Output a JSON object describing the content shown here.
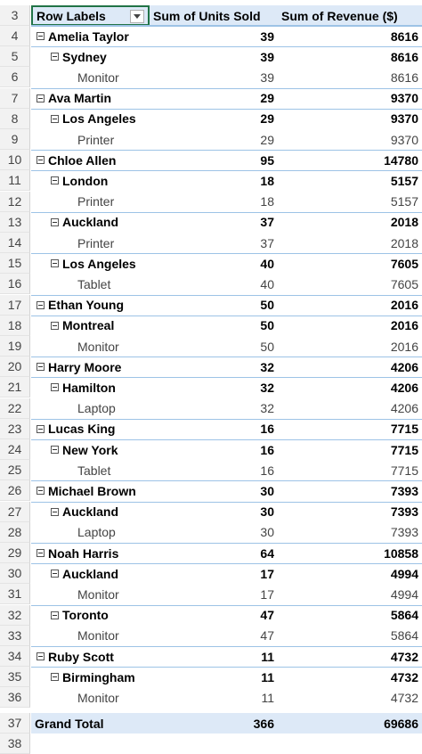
{
  "pivot": {
    "header_row_number": "3",
    "headers": {
      "row_labels": "Row Labels",
      "units": "Sum of Units Sold",
      "revenue": "Sum of Revenue ($)"
    },
    "rows": [
      {
        "n": "4",
        "label": "Amelia Taylor",
        "units": "39",
        "revenue": "8616",
        "level": 0
      },
      {
        "n": "5",
        "label": "Sydney",
        "units": "39",
        "revenue": "8616",
        "level": 1
      },
      {
        "n": "6",
        "label": "Monitor",
        "units": "39",
        "revenue": "8616",
        "level": 2
      },
      {
        "n": "7",
        "label": "Ava Martin",
        "units": "29",
        "revenue": "9370",
        "level": 0
      },
      {
        "n": "8",
        "label": "Los Angeles",
        "units": "29",
        "revenue": "9370",
        "level": 1
      },
      {
        "n": "9",
        "label": "Printer",
        "units": "29",
        "revenue": "9370",
        "level": 2
      },
      {
        "n": "10",
        "label": "Chloe Allen",
        "units": "95",
        "revenue": "14780",
        "level": 0
      },
      {
        "n": "11",
        "label": "London",
        "units": "18",
        "revenue": "5157",
        "level": 1
      },
      {
        "n": "12",
        "label": "Printer",
        "units": "18",
        "revenue": "5157",
        "level": 2
      },
      {
        "n": "13",
        "label": "Auckland",
        "units": "37",
        "revenue": "2018",
        "level": 1
      },
      {
        "n": "14",
        "label": "Printer",
        "units": "37",
        "revenue": "2018",
        "level": 2
      },
      {
        "n": "15",
        "label": "Los Angeles",
        "units": "40",
        "revenue": "7605",
        "level": 1
      },
      {
        "n": "16",
        "label": "Tablet",
        "units": "40",
        "revenue": "7605",
        "level": 2
      },
      {
        "n": "17",
        "label": "Ethan Young",
        "units": "50",
        "revenue": "2016",
        "level": 0
      },
      {
        "n": "18",
        "label": "Montreal",
        "units": "50",
        "revenue": "2016",
        "level": 1
      },
      {
        "n": "19",
        "label": "Monitor",
        "units": "50",
        "revenue": "2016",
        "level": 2
      },
      {
        "n": "20",
        "label": "Harry Moore",
        "units": "32",
        "revenue": "4206",
        "level": 0
      },
      {
        "n": "21",
        "label": "Hamilton",
        "units": "32",
        "revenue": "4206",
        "level": 1
      },
      {
        "n": "22",
        "label": "Laptop",
        "units": "32",
        "revenue": "4206",
        "level": 2
      },
      {
        "n": "23",
        "label": "Lucas King",
        "units": "16",
        "revenue": "7715",
        "level": 0
      },
      {
        "n": "24",
        "label": "New York",
        "units": "16",
        "revenue": "7715",
        "level": 1
      },
      {
        "n": "25",
        "label": "Tablet",
        "units": "16",
        "revenue": "7715",
        "level": 2
      },
      {
        "n": "26",
        "label": "Michael Brown",
        "units": "30",
        "revenue": "7393",
        "level": 0
      },
      {
        "n": "27",
        "label": "Auckland",
        "units": "30",
        "revenue": "7393",
        "level": 1
      },
      {
        "n": "28",
        "label": "Laptop",
        "units": "30",
        "revenue": "7393",
        "level": 2
      },
      {
        "n": "29",
        "label": "Noah Harris",
        "units": "64",
        "revenue": "10858",
        "level": 0
      },
      {
        "n": "30",
        "label": "Auckland",
        "units": "17",
        "revenue": "4994",
        "level": 1
      },
      {
        "n": "31",
        "label": "Monitor",
        "units": "17",
        "revenue": "4994",
        "level": 2
      },
      {
        "n": "32",
        "label": "Toronto",
        "units": "47",
        "revenue": "5864",
        "level": 1
      },
      {
        "n": "33",
        "label": "Monitor",
        "units": "47",
        "revenue": "5864",
        "level": 2
      },
      {
        "n": "34",
        "label": "Ruby Scott",
        "units": "11",
        "revenue": "4732",
        "level": 0
      },
      {
        "n": "35",
        "label": "Birmingham",
        "units": "11",
        "revenue": "4732",
        "level": 1
      },
      {
        "n": "36",
        "label": "Monitor",
        "units": "11",
        "revenue": "4732",
        "level": 2
      }
    ],
    "grand_total": {
      "n": "37",
      "label": "Grand Total",
      "units": "366",
      "revenue": "69686"
    },
    "next_row_number": "38"
  },
  "colors": {
    "header_fill": "#dde9f7",
    "border_blue": "#9dc3e6",
    "selected_cell_border": "#217346"
  }
}
